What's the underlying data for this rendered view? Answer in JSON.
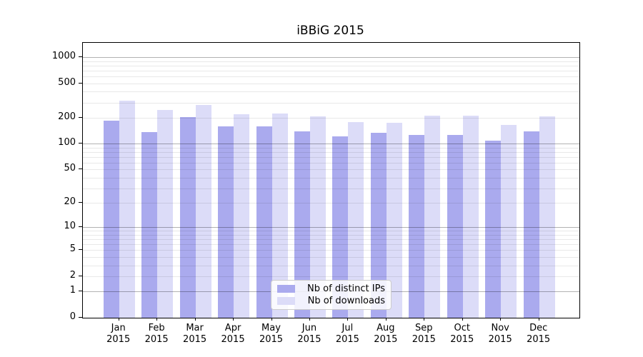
{
  "title": "iBBiG 2015",
  "chart_data": {
    "type": "bar",
    "title": "iBBiG 2015",
    "categories": [
      "Jan",
      "Feb",
      "Mar",
      "Apr",
      "May",
      "Jun",
      "Jul",
      "Aug",
      "Sep",
      "Oct",
      "Nov",
      "Dec"
    ],
    "year": "2015",
    "series": [
      {
        "name": "Nb of distinct IPs",
        "color": "#aaaaee",
        "values": [
          185,
          136,
          202,
          159,
          160,
          140,
          121,
          134,
          126,
          127,
          108,
          138
        ]
      },
      {
        "name": "Nb of downloads",
        "color": "#dcdcf8",
        "values": [
          313,
          244,
          279,
          218,
          222,
          206,
          177,
          173,
          211,
          212,
          166,
          208
        ]
      }
    ],
    "xlabel": "",
    "ylabel": "",
    "y_scale": "log1p",
    "ylim": [
      0,
      1460
    ],
    "y_ticks": [
      1000,
      500,
      200,
      100,
      50,
      20,
      10,
      5,
      2,
      1,
      0
    ],
    "major_gridlines": [
      1,
      10,
      100,
      1000
    ],
    "minor_grid_decades": [
      1,
      10,
      100
    ],
    "minor_grid_multiples": [
      2,
      3,
      4,
      5,
      6,
      7,
      8,
      9
    ],
    "grid": true,
    "legend_position": "lower center"
  }
}
